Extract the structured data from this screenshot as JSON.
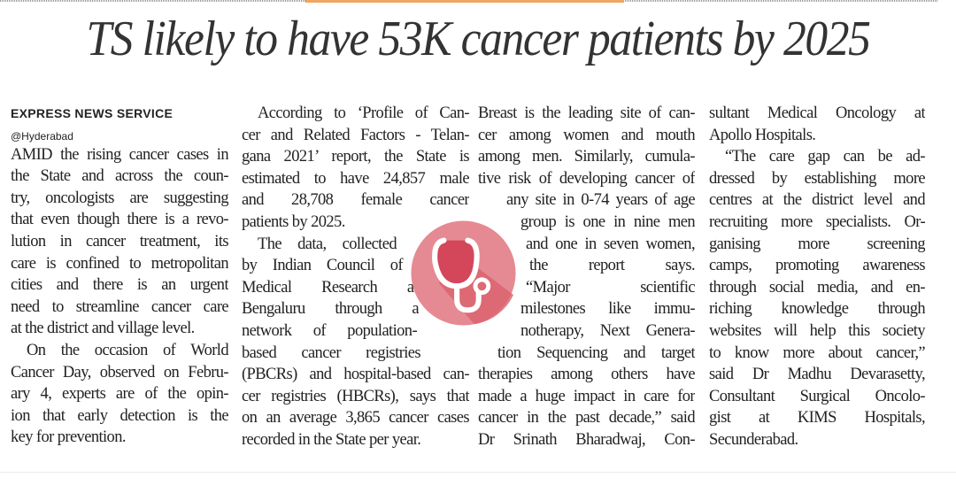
{
  "headline": "TS likely to have 53K cancer patients by 2025",
  "byline": {
    "agency": "EXPRESS NEWS SERVICE",
    "location": "@Hyderabad"
  },
  "icon": "stethoscope-icon",
  "colors": {
    "accent_bar": "#f0a560",
    "icon_circle": "#e07f87",
    "icon_inner": "#d9505f"
  },
  "columns": [
    [
      "AMID the rising cancer cases in",
      "the State and across the coun-",
      "try, oncologists are suggesting",
      "that even though there is a revo-",
      "lution in cancer treatment, its",
      "care is confined to metropolitan",
      "cities and there is an urgent",
      "need to streamline cancer care",
      "at the district and village level.",
      "On the occasion of World",
      "Cancer Day, observed on Febru-",
      "ary 4, experts are of the opin-",
      "ion that early detection is the",
      "key for prevention."
    ],
    [
      "According to ‘Profile of Can-",
      "cer and Related Factors - Telan-",
      "gana 2021’ report, the State is",
      "estimated to have 24,857 male",
      "and 28,708 female cancer",
      "patients by 2025.",
      "The data, collected",
      "by Indian Council of",
      "Medical Research at",
      "Bengaluru through a",
      "network of population-",
      "based cancer registries",
      "(PBCRs) and hospital-based can-",
      "cer registries (HBCRs), says that",
      "on an average 3,865 cancer cases",
      "recorded in the State per year."
    ],
    [
      "Breast is the leading site of can-",
      "cer among women and mouth",
      "among men. Similarly, cumula-",
      "tive risk of developing cancer of",
      "any site in 0-74 years of age",
      "group is one in nine men",
      "and one in seven women,",
      "the report says.",
      "“Major scientific",
      "milestones like immu-",
      "notherapy, Next Genera-",
      "tion Sequencing and target",
      "therapies among others have",
      "made a huge impact in care for",
      "cancer in the past decade,” said",
      "Dr Srinath Bharadwaj, Con-"
    ],
    [
      "sultant Medical Oncology at",
      "Apollo Hospitals.",
      "“The care gap can be ad-",
      "dressed by establishing more",
      "centres at the district level and",
      "recruiting more specialists. Or-",
      "ganising more screening",
      "camps, promoting awareness",
      "through social media, and en-",
      "riching knowledge through",
      "websites will help this society",
      "to know more about cancer,”",
      "said Dr Madhu Devarasetty,",
      "Consultant Surgical Oncolo-",
      "gist at KIMS Hospitals,",
      "Secunderabad."
    ]
  ]
}
